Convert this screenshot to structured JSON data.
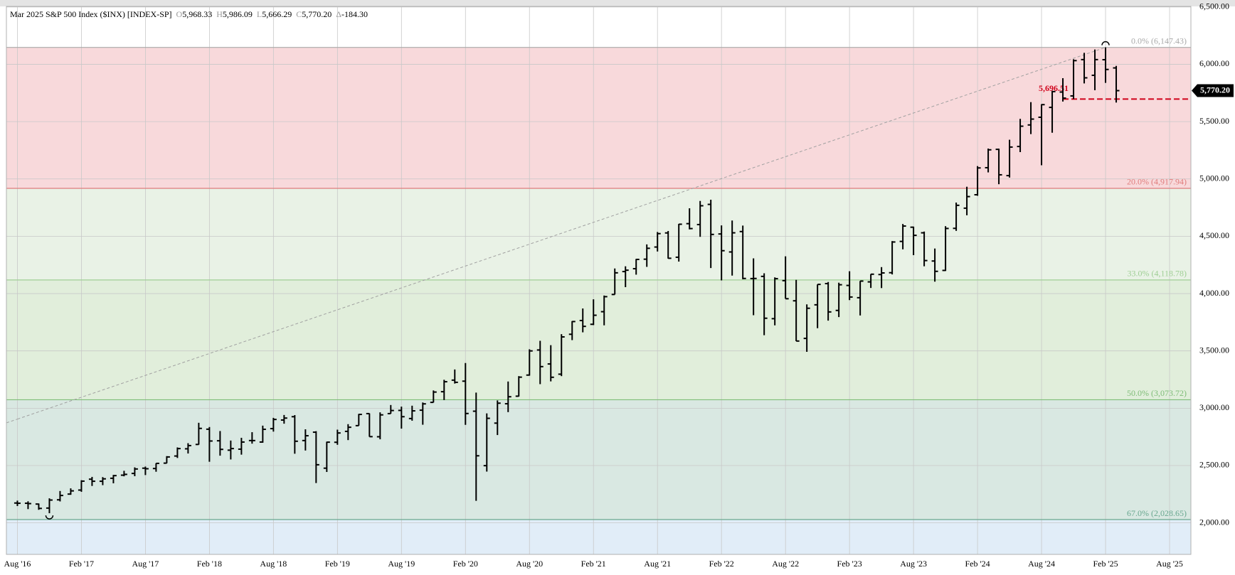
{
  "chart_data": {
    "type": "ohlc",
    "header": {
      "title": "Mar 2025 S&P 500 Index ($INX) [INDEX-SP]",
      "fields": [
        {
          "key": "O",
          "value": "5,968.33"
        },
        {
          "key": "H",
          "value": "5,986.09"
        },
        {
          "key": "L",
          "value": "5,666.29"
        },
        {
          "key": "C",
          "value": "5,770.20"
        },
        {
          "key": "Δ",
          "value": "-184.30"
        }
      ]
    },
    "categories": [
      "Aug '16",
      null,
      null,
      null,
      null,
      null,
      "Feb '17",
      null,
      null,
      null,
      null,
      null,
      "Aug '17",
      null,
      null,
      null,
      null,
      null,
      "Feb '18",
      null,
      null,
      null,
      null,
      null,
      "Aug '18",
      null,
      null,
      null,
      null,
      null,
      "Feb '19",
      null,
      null,
      null,
      null,
      null,
      "Aug '19",
      null,
      null,
      null,
      null,
      null,
      "Feb '20",
      null,
      null,
      null,
      null,
      null,
      "Aug '20",
      null,
      null,
      null,
      null,
      null,
      "Feb '21",
      null,
      null,
      null,
      null,
      null,
      "Aug '21",
      null,
      null,
      null,
      null,
      null,
      "Feb '22",
      null,
      null,
      null,
      null,
      null,
      "Aug '22",
      null,
      null,
      null,
      null,
      null,
      "Feb '23",
      null,
      null,
      null,
      null,
      null,
      "Aug '23",
      null,
      null,
      null,
      null,
      null,
      "Feb '24",
      null,
      null,
      null,
      null,
      null,
      "Aug '24",
      null,
      null,
      null,
      null,
      null,
      "Feb '25",
      null,
      null,
      null,
      null,
      null,
      "Aug '25"
    ],
    "open": [
      2173,
      2171,
      2164,
      2129,
      2201,
      2251,
      2286,
      2381,
      2363,
      2389,
      2416,
      2431,
      2477,
      2474,
      2521,
      2583,
      2646,
      2684,
      2817,
      2716,
      2634,
      2643,
      2718,
      2705,
      2822,
      2897,
      2926,
      2718,
      2791,
      2477,
      2703,
      2798,
      2848,
      2953,
      2751,
      2953,
      2981,
      2910,
      2983,
      3051,
      3144,
      3245,
      3236,
      2974,
      2499,
      2870,
      3039,
      3105,
      3289,
      3508,
      3386,
      3297,
      3645,
      3765,
      3732,
      3842,
      3992,
      4192,
      4217,
      4300,
      4406,
      4529,
      4317,
      4610,
      4602,
      4778,
      4520,
      4363,
      4541,
      4131,
      4150,
      3781,
      4113,
      3937,
      3609,
      3902,
      4087,
      3853,
      4071,
      3964,
      4102,
      4166,
      4182,
      4455,
      4579,
      4530,
      4284,
      4202,
      4569,
      4745,
      4862,
      5098,
      5258,
      5029,
      5283,
      5471,
      5538,
      5624,
      5758,
      5724,
      6041,
      5904,
      6040,
      5968.33,
      null,
      null,
      null,
      null,
      null
    ],
    "high": [
      2194,
      2188,
      2169,
      2214,
      2278,
      2301,
      2372,
      2401,
      2399,
      2418,
      2454,
      2484,
      2491,
      2520,
      2582,
      2658,
      2695,
      2873,
      2836,
      2801,
      2718,
      2742,
      2791,
      2848,
      2916,
      2941,
      2940,
      2816,
      2800,
      2708,
      2813,
      2861,
      2950,
      2955,
      2964,
      3028,
      3014,
      3022,
      3050,
      3155,
      3248,
      3338,
      3394,
      3136,
      2955,
      3068,
      3233,
      3280,
      3514,
      3588,
      3550,
      3646,
      3760,
      3870,
      3950,
      3983,
      4219,
      4238,
      4302,
      4429,
      4537,
      4546,
      4608,
      4744,
      4808,
      4819,
      4595,
      4637,
      4593,
      4307,
      4177,
      4141,
      4325,
      4120,
      3906,
      4080,
      4101,
      4095,
      4195,
      4110,
      4170,
      4231,
      4458,
      4607,
      4584,
      4541,
      4393,
      4588,
      4794,
      4932,
      5112,
      5265,
      5264,
      5342,
      5524,
      5670,
      5652,
      5768,
      5879,
      6044,
      6100,
      6129,
      6147.43,
      5986.09,
      null,
      null,
      null,
      null,
      null
    ],
    "low": [
      2147,
      2120,
      2114,
      2084,
      2187,
      2245,
      2271,
      2322,
      2329,
      2345,
      2406,
      2407,
      2417,
      2446,
      2520,
      2566,
      2605,
      2682,
      2533,
      2586,
      2553,
      2595,
      2691,
      2699,
      2796,
      2865,
      2603,
      2631,
      2347,
      2444,
      2681,
      2722,
      2848,
      2751,
      2729,
      2953,
      2822,
      2891,
      2856,
      3050,
      3071,
      3215,
      2855,
      2192,
      2447,
      2766,
      2966,
      3102,
      3284,
      3210,
      3234,
      3280,
      3594,
      3662,
      3725,
      3723,
      3992,
      4056,
      4165,
      4233,
      4367,
      4305,
      4279,
      4560,
      4495,
      4223,
      4115,
      4157,
      4125,
      3811,
      3637,
      3723,
      3955,
      3585,
      3492,
      3698,
      3764,
      3795,
      3943,
      3809,
      4049,
      4048,
      4167,
      4386,
      4335,
      4238,
      4104,
      4197,
      4547,
      4683,
      4853,
      5057,
      4954,
      5012,
      5234,
      5391,
      5119,
      5403,
      5675,
      5697,
      5833,
      5774,
      5838,
      5666.29,
      null,
      null,
      null,
      null,
      null
    ],
    "close": [
      2171,
      2168,
      2126,
      2199,
      2239,
      2279,
      2364,
      2363,
      2384,
      2412,
      2423,
      2470,
      2472,
      2519,
      2575,
      2648,
      2674,
      2824,
      2714,
      2641,
      2648,
      2705,
      2718,
      2816,
      2902,
      2914,
      2712,
      2760,
      2507,
      2704,
      2784,
      2834,
      2946,
      2752,
      2942,
      2980,
      2926,
      2977,
      3038,
      3141,
      3231,
      3226,
      2954,
      2585,
      2912,
      3044,
      3100,
      3271,
      3500,
      3363,
      3270,
      3622,
      3756,
      3714,
      3811,
      3973,
      4181,
      4204,
      4298,
      4395,
      4523,
      4308,
      4605,
      4567,
      4766,
      4516,
      4374,
      4530,
      4132,
      4132,
      3785,
      4130,
      3955,
      3586,
      3872,
      4080,
      3840,
      4077,
      3970,
      4109,
      4169,
      4180,
      4450,
      4589,
      4508,
      4288,
      4194,
      4568,
      4770,
      4846,
      5096,
      5254,
      5036,
      5278,
      5460,
      5522,
      5648,
      5762,
      5705,
      6032,
      5882,
      6041,
      5955,
      5770.2,
      null,
      null,
      null,
      null,
      null
    ],
    "bar_color": "#000000",
    "last_label": "5,770.20",
    "ylim": [
      1725,
      6505
    ],
    "yticks": [
      {
        "value": 2000,
        "label": "2,000.00"
      },
      {
        "value": 2500,
        "label": "2,500.00"
      },
      {
        "value": 3000,
        "label": "3,000.00"
      },
      {
        "value": 3500,
        "label": "3,500.00"
      },
      {
        "value": 4000,
        "label": "4,000.00"
      },
      {
        "value": 4500,
        "label": "4,500.00"
      },
      {
        "value": 5000,
        "label": "5,000.00"
      },
      {
        "value": 5500,
        "label": "5,500.00"
      },
      {
        "value": 6000,
        "label": "6,000.00"
      },
      {
        "value": 6500,
        "label": "6,500.00"
      }
    ],
    "grid": true,
    "levels": [
      {
        "value": 6147.43,
        "label": "0.0% (6,147.43)",
        "color": "#a9a9a9",
        "fill": "#f8d9db"
      },
      {
        "value": 4917.94,
        "label": "20.0% (4,917.94)",
        "color": "#e07c7c",
        "fill": "#e9f2e6"
      },
      {
        "value": 4118.78,
        "label": "33.0% (4,118.78)",
        "color": "#9fcf95",
        "fill": "#e1eedb"
      },
      {
        "value": 3073.72,
        "label": "50.0% (3,073.72)",
        "color": "#7fbd78",
        "fill": "#d9e8e2"
      },
      {
        "value": 2028.65,
        "label": "67.0% (2,028.65)",
        "color": "#6aa890",
        "fill": "#e1edf8"
      }
    ],
    "trendline": {
      "x": [
        0,
        102
      ],
      "y": [
        2905,
        6147.43
      ],
      "color": "#a0a0a0"
    },
    "support": {
      "value": 5696.51,
      "label": "5,696.51",
      "start": 98,
      "color": "#d0021b"
    }
  }
}
